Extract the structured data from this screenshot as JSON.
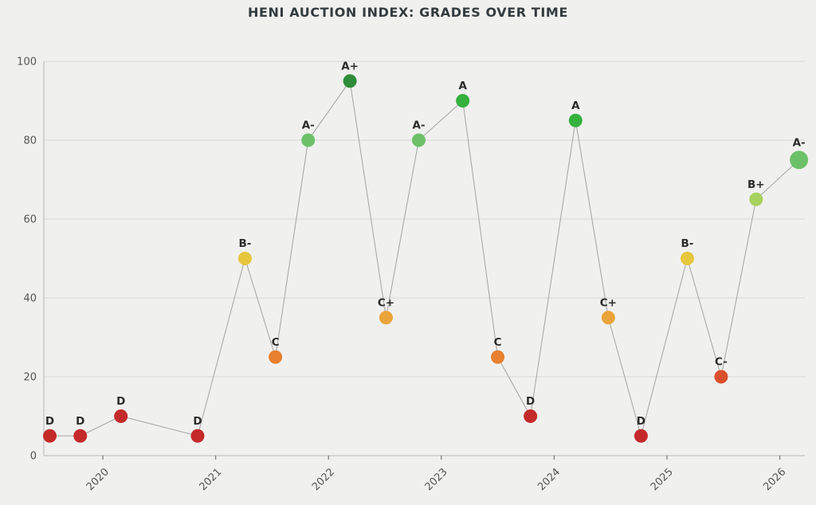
{
  "title": "HENI AUCTION INDEX: GRADES OVER TIME",
  "chart_data": {
    "type": "line",
    "title": "HENI AUCTION INDEX: GRADES OVER TIME",
    "xlabel": "",
    "ylabel": "",
    "x": [
      2019.53,
      2019.8,
      2020.16,
      2020.84,
      2021.26,
      2021.53,
      2021.82,
      2022.19,
      2022.51,
      2022.8,
      2023.19,
      2023.5,
      2023.79,
      2024.19,
      2024.48,
      2024.77,
      2025.18,
      2025.48,
      2025.79,
      2026.17
    ],
    "values": [
      5,
      5,
      10,
      5,
      50,
      25,
      80,
      95,
      35,
      80,
      90,
      25,
      10,
      85,
      35,
      5,
      50,
      20,
      65,
      75
    ],
    "point_labels": [
      "D",
      "D",
      "D",
      "D",
      "B-",
      "C",
      "A-",
      "A+",
      "C+",
      "A-",
      "A",
      "C",
      "D",
      "A",
      "C+",
      "D",
      "B-",
      "C-",
      "B+",
      "A-"
    ],
    "grade_colors": {
      "A+": "#2f8c38",
      "A": "#35b13e",
      "A-": "#6cc168",
      "B+": "#a6d15e",
      "B-": "#e6c73d",
      "C+": "#eaa43a",
      "C": "#e8802f",
      "C-": "#da4f2b",
      "D": "#c42a2a"
    },
    "x_ticks": [
      2020,
      2021,
      2022,
      2023,
      2024,
      2025,
      2026
    ],
    "y_ticks": [
      0,
      20,
      40,
      60,
      80,
      100
    ],
    "xlim": [
      2019.477,
      2026.222
    ],
    "ylim": [
      0,
      100
    ],
    "grid": "horizontal",
    "legend": "none",
    "line_color": "#a9a9a9",
    "highlight_last_point": true
  },
  "style_colors": {
    "background": "#f0f0ef",
    "gridline": "#d8d8d8",
    "spine": "#c2c2c2",
    "tick_mark": "#777777",
    "tick_text": "#555555",
    "grade_label_text": "#2b2b2b",
    "title_text": "#333b3f"
  }
}
